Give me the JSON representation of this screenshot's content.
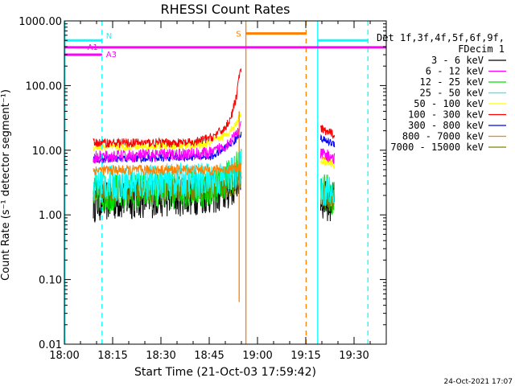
{
  "chart_data": {
    "type": "line",
    "title": "RHESSI Count Rates",
    "xlabel": "Start Time (21-Oct-03 17:59:42)",
    "ylabel": "Count Rate (s⁻¹ detector segment⁻¹)",
    "y_scale": "log",
    "x_range_min": [
      0,
      100
    ],
    "ylim": [
      0.01,
      1000
    ],
    "x_ticks": [
      {
        "at": 0,
        "label": "18:00"
      },
      {
        "at": 15,
        "label": "18:15"
      },
      {
        "at": 30,
        "label": "18:30"
      },
      {
        "at": 45,
        "label": "18:45"
      },
      {
        "at": 60,
        "label": "19:00"
      },
      {
        "at": 75,
        "label": "19:15"
      },
      {
        "at": 90,
        "label": "19:30"
      }
    ],
    "y_ticks": [
      {
        "value": 0.01,
        "label": "0.01"
      },
      {
        "value": 0.1,
        "label": "0.10"
      },
      {
        "value": 1,
        "label": "1.00"
      },
      {
        "value": 10,
        "label": "10.00"
      },
      {
        "value": 100,
        "label": "100.00"
      },
      {
        "value": 1000,
        "label": "1000.00"
      }
    ],
    "legend_header": [
      "Det 1f,3f,4f,5f,6f,9f,",
      "FDecim 1"
    ],
    "legend_position": "right",
    "series": [
      {
        "name": "3 - 6 keV",
        "color": "#000000",
        "level": 1.6,
        "noise": 0.32,
        "late": [
          [
            50,
            2.2
          ],
          [
            53,
            3.0
          ],
          [
            54.5,
            4.0
          ]
        ],
        "after": 1.8
      },
      {
        "name": "6 - 12 keV",
        "color": "#ff00ff",
        "level": 7.8,
        "noise": 0.1,
        "late": [
          [
            46,
            9
          ],
          [
            50,
            12
          ],
          [
            53,
            16
          ],
          [
            54.5,
            22
          ]
        ],
        "after": 9.0
      },
      {
        "name": "12 - 25 keV",
        "color": "#00dd00",
        "level": 2.1,
        "noise": 0.3,
        "late": [
          [
            45,
            2.6
          ],
          [
            50,
            3.5
          ],
          [
            53,
            4.5
          ],
          [
            54.5,
            6
          ]
        ],
        "after": 2.3
      },
      {
        "name": "25 - 50 keV",
        "color": "#00ffff",
        "level": 3.0,
        "noise": 0.28,
        "late": [
          [
            48,
            3.5
          ],
          [
            53,
            4.5
          ],
          [
            54.5,
            5.5
          ]
        ],
        "after": 2.6
      },
      {
        "name": "50 - 100 keV",
        "color": "#ffff00",
        "level": 11.0,
        "noise": 0.06,
        "late": [
          [
            44,
            12
          ],
          [
            50,
            17
          ],
          [
            53,
            24
          ],
          [
            54.5,
            35
          ]
        ],
        "after": 7.0
      },
      {
        "name": "100 - 300 keV",
        "color": "#ff0000",
        "level": 13.0,
        "noise": 0.07,
        "late": [
          [
            40,
            13
          ],
          [
            46,
            16
          ],
          [
            50,
            22
          ],
          [
            52,
            35
          ],
          [
            53.5,
            70
          ],
          [
            54.5,
            165
          ]
        ],
        "after": 21.0
      },
      {
        "name": "300 - 800 keV",
        "color": "#0000ff",
        "level": 7.2,
        "noise": 0.06,
        "late": [
          [
            46,
            8
          ],
          [
            50,
            11
          ],
          [
            53,
            14
          ],
          [
            54.5,
            18
          ]
        ],
        "after": 15.0
      },
      {
        "name": "800 - 7000 keV",
        "color": "#ff8000",
        "level": 4.9,
        "noise": 0.08,
        "late": [
          [
            50,
            5
          ],
          [
            54.5,
            5.6
          ]
        ],
        "after": 8.0
      },
      {
        "name": "7000 - 15000 keV",
        "color": "#808000",
        "level": 2.3,
        "noise": 0.18,
        "late": [
          [
            50,
            2.6
          ],
          [
            54.5,
            3.2
          ]
        ],
        "after": 2.0
      }
    ],
    "data_windows": [
      [
        9,
        55
      ],
      [
        79.6,
        84
      ]
    ],
    "annotations": [
      {
        "type": "vline",
        "x": 0.2,
        "color": "#00ffff",
        "style": "solid"
      },
      {
        "type": "vline",
        "x": 11.7,
        "color": "#00ffff",
        "style": "dashed"
      },
      {
        "type": "vline",
        "x": 78.7,
        "color": "#00ffff",
        "style": "solid"
      },
      {
        "type": "vline",
        "x": 94.3,
        "color": "#00ffff",
        "style": "dashed"
      },
      {
        "type": "vline",
        "x": 56.4,
        "color": "#ff8000",
        "style": "solid"
      },
      {
        "type": "vline",
        "x": 75.1,
        "color": "#ff8000",
        "style": "dashed"
      },
      {
        "type": "vline",
        "x": 54.3,
        "color": "#ff8000",
        "style": "solid",
        "ymin": 0.045,
        "ymax": 40
      },
      {
        "type": "hbar",
        "label": "N",
        "color": "#00ffff",
        "y": 500,
        "x1": 0.2,
        "x2": 11.7
      },
      {
        "type": "hbar",
        "label": "",
        "color": "#00ffff",
        "y": 500,
        "x1": 78.7,
        "x2": 94.3
      },
      {
        "type": "hbar",
        "label": "A1",
        "color": "#ff00ff",
        "y": 390,
        "x1": 0,
        "x2": 100
      },
      {
        "type": "hbar",
        "label": "A3",
        "color": "#ff00ff",
        "y": 300,
        "x1": 0,
        "x2": 11.7
      },
      {
        "type": "hbar",
        "label": "S",
        "color": "#ff8000",
        "y": 640,
        "x1": 56.4,
        "x2": 75.1
      }
    ],
    "grid": false
  },
  "footer": {
    "date": "24-Oct-2021 17:07"
  }
}
